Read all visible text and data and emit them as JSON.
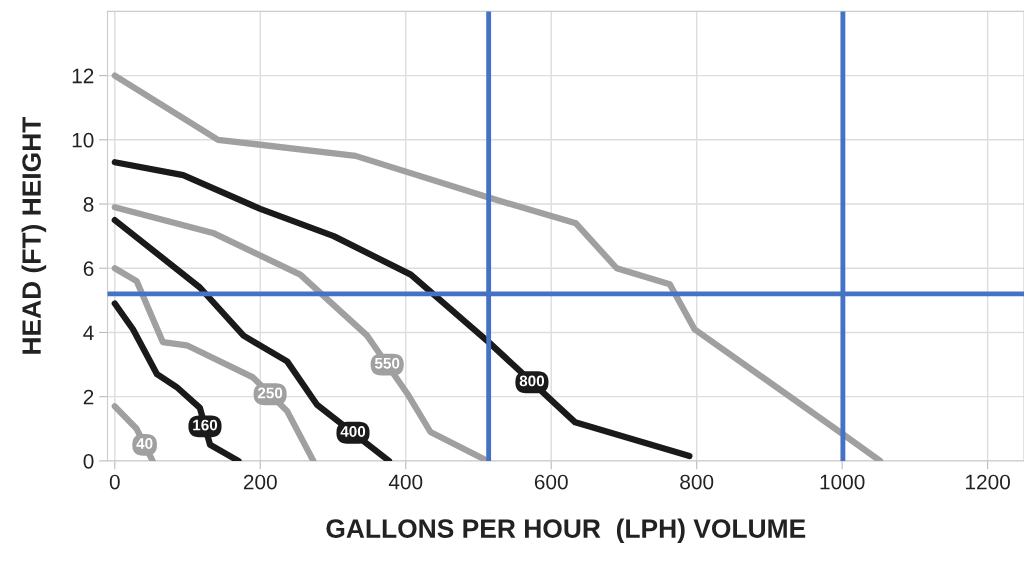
{
  "chart_data": {
    "type": "line",
    "xlabel": "GALLONS PER HOUR  (LPH) VOLUME",
    "ylabel": "HEAD (FT) HEIGHT",
    "series": [
      {
        "color": "#a0a0a0",
        "x": [
          0,
          142,
          331,
          514,
          634,
          690,
          763,
          797,
          1000,
          1052
        ],
        "values": [
          12,
          10.0,
          9.5,
          8.2,
          7.4,
          6.0,
          5.5,
          4.1,
          0.85,
          0
        ]
      },
      {
        "name": "800",
        "color": "#1a1a1a",
        "x": [
          0,
          94,
          200,
          301,
          407,
          514,
          633,
          790
        ],
        "values": [
          9.3,
          8.9,
          7.85,
          7.0,
          5.8,
          3.7,
          1.2,
          0.15
        ]
      },
      {
        "name": "550",
        "color": "#a0a0a0",
        "x": [
          0,
          135,
          255,
          347,
          402,
          434,
          508
        ],
        "values": [
          7.9,
          7.1,
          5.8,
          3.9,
          2.1,
          0.9,
          0.05
        ]
      },
      {
        "name": "400",
        "color": "#1a1a1a",
        "x": [
          0,
          117,
          177,
          237,
          278,
          377
        ],
        "values": [
          7.5,
          5.4,
          3.9,
          3.1,
          1.75,
          0
        ]
      },
      {
        "name": "250",
        "color": "#a0a0a0",
        "x": [
          0,
          30,
          66,
          99,
          190,
          237,
          273
        ],
        "values": [
          6.0,
          5.6,
          3.7,
          3.6,
          2.6,
          1.55,
          0
        ]
      },
      {
        "name": "160",
        "color": "#1a1a1a",
        "x": [
          0,
          25,
          58,
          85,
          117,
          131,
          170
        ],
        "values": [
          4.9,
          4.1,
          2.7,
          2.3,
          1.65,
          0.5,
          0
        ]
      },
      {
        "name": "40",
        "color": "#a0a0a0",
        "x": [
          0,
          30,
          52
        ],
        "values": [
          1.7,
          1.0,
          0
        ]
      }
    ],
    "xlim": [
      -10,
      1250
    ],
    "ylim": [
      0,
      14
    ],
    "xticks": [
      0,
      200,
      400,
      600,
      800,
      1000,
      1200
    ],
    "yticks": [
      0,
      2,
      4,
      6,
      8,
      10,
      12
    ],
    "ref_lines": [
      {
        "axis": "x",
        "value": 514,
        "color": "#4472c4"
      },
      {
        "axis": "x",
        "value": 1001,
        "color": "#4472c4"
      },
      {
        "axis": "y",
        "value": 5.2,
        "color": "#4472c4"
      }
    ],
    "grid": true,
    "legend": false
  }
}
